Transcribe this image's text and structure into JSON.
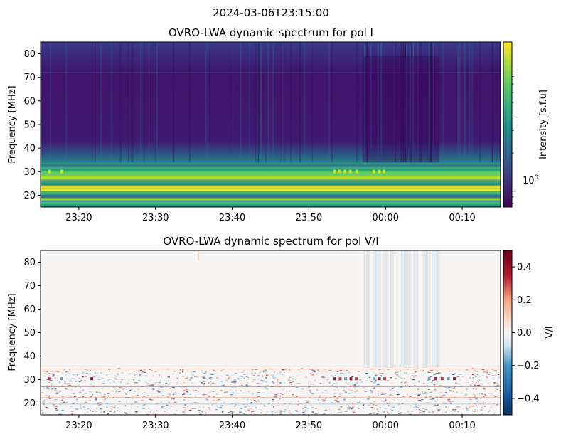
{
  "figure": {
    "suptitle": "2024-03-06T23:15:00"
  },
  "chart_data": [
    {
      "type": "heatmap",
      "title": "OVRO-LWA dynamic spectrum for pol I",
      "ylabel": "Frequency [MHz]",
      "xlabel": "",
      "x_ticks": [
        "23:20",
        "23:30",
        "23:40",
        "23:50",
        "00:00",
        "00:10"
      ],
      "x_tick_minutes": [
        5,
        15,
        25,
        35,
        45,
        55
      ],
      "xlim_minutes": [
        0,
        60
      ],
      "x_start": "23:15",
      "x_end": "00:15",
      "y_ticks": [
        20,
        30,
        40,
        50,
        60,
        70,
        80
      ],
      "ylim": [
        15,
        85
      ],
      "colormap": "viridis",
      "colorbar": {
        "label": "Intensity [s.f.u]",
        "scale": "log",
        "tick_labels": [
          "10^0"
        ],
        "tick_values": [
          1.0
        ],
        "range": [
          0.75,
          15
        ]
      },
      "colors": {
        "background": "#40106a",
        "low": "#440154",
        "mid": "#21918c",
        "high": "#fde725"
      }
    },
    {
      "type": "heatmap",
      "title": "OVRO-LWA dynamic spectrum for pol V/I",
      "ylabel": "Frequency [MHz]",
      "xlabel": "",
      "x_ticks": [
        "23:20",
        "23:30",
        "23:40",
        "23:50",
        "00:00",
        "00:10"
      ],
      "x_tick_minutes": [
        5,
        15,
        25,
        35,
        45,
        55
      ],
      "xlim_minutes": [
        0,
        60
      ],
      "x_start": "23:15",
      "x_end": "00:15",
      "y_ticks": [
        20,
        30,
        40,
        50,
        60,
        70,
        80
      ],
      "ylim": [
        15,
        85
      ],
      "colormap": "RdBu_r",
      "colorbar": {
        "label": "V/I",
        "scale": "linear",
        "tick_labels": [
          "0.4",
          "0.2",
          "0.0",
          "−0.2",
          "−0.4"
        ],
        "tick_values": [
          0.4,
          0.2,
          0.0,
          -0.2,
          -0.4
        ],
        "range": [
          -0.5,
          0.5
        ]
      },
      "colors": {
        "background": "#f5f4f3",
        "negative": "#053061",
        "positive": "#67001f"
      }
    }
  ]
}
